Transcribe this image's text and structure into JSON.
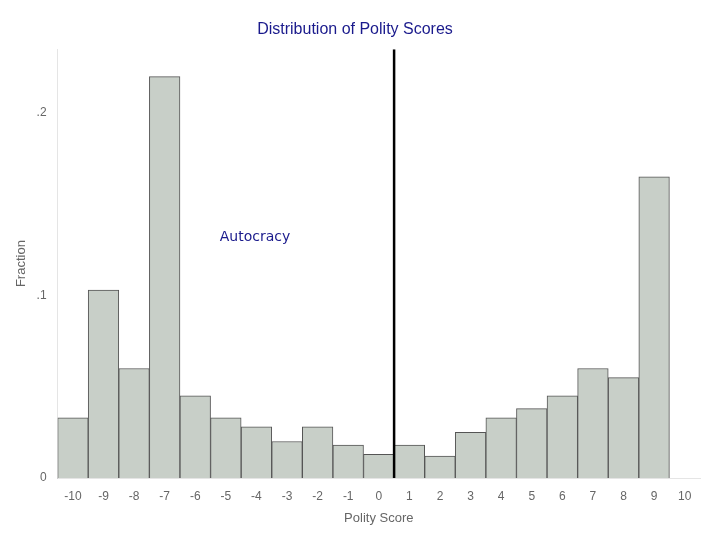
{
  "chart_data": {
    "type": "bar",
    "title": "Distribution of Polity Scores",
    "title_color": "#1a1a8c",
    "xlabel": "Polity Score",
    "ylabel": "Fraction",
    "x": [
      -10,
      -9,
      -8,
      -7,
      -6,
      -5,
      -4,
      -3,
      -2,
      -1,
      0,
      1,
      2,
      3,
      4,
      5,
      6,
      7,
      8,
      9,
      10
    ],
    "values": [
      0.033,
      0.103,
      0.06,
      0.22,
      0.045,
      0.033,
      0.028,
      0.02,
      0.028,
      0.018,
      0.013,
      0.018,
      0.012,
      0.025,
      0.033,
      0.038,
      0.045,
      0.06,
      0.055,
      0.165,
      0.0
    ],
    "color": "#c8cfc8",
    "xlim": [
      -10.5,
      10.5
    ],
    "xticks": [
      -10,
      -9,
      -8,
      -7,
      -6,
      -5,
      -4,
      -3,
      -2,
      -1,
      0,
      1,
      2,
      3,
      4,
      5,
      6,
      7,
      8,
      9,
      10
    ],
    "ylim": [
      0,
      0.235
    ],
    "yticks": [
      0,
      {
        "value": 0.1,
        "label": ".1"
      },
      {
        "value": 0.2,
        "label": ".2"
      }
    ],
    "vline": {
      "x": 0.5,
      "color": "black"
    },
    "annotations": [
      {
        "text": "Autocracy",
        "x": -5.2,
        "y": 0.13,
        "color": "#1a1a8c"
      }
    ],
    "grid": false
  }
}
